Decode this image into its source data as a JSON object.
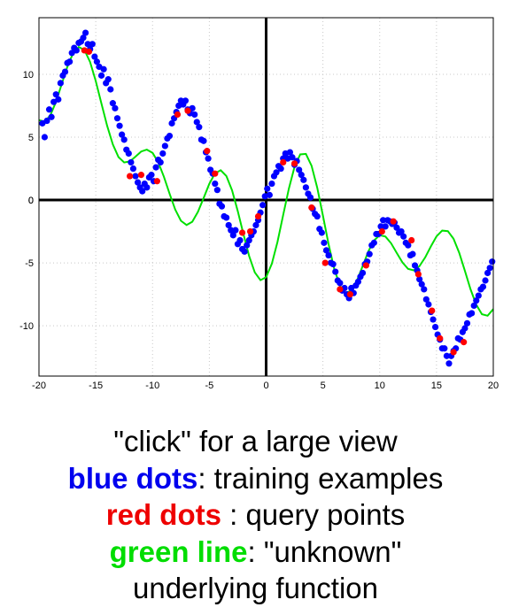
{
  "chart_data": {
    "type": "scatter",
    "title": "",
    "xlabel": "",
    "ylabel": "",
    "xlim": [
      -20,
      20
    ],
    "ylim": [
      -14,
      14.5
    ],
    "grid": true,
    "xticks": [
      -20,
      -15,
      -10,
      -5,
      0,
      5,
      10,
      15,
      20
    ],
    "yticks": [
      -10,
      -5,
      0,
      5,
      10
    ],
    "xtick_labels": [
      "-20",
      "-15",
      "-10",
      "-5",
      "0",
      "5",
      "10",
      "15",
      "20"
    ],
    "ytick_labels": [
      "-10",
      "-5",
      "0",
      "5",
      "10"
    ],
    "series": [
      {
        "role": "training examples",
        "color": "#0000ff",
        "points": [
          [
            -19.7,
            6.1
          ],
          [
            -19.5,
            5.0
          ],
          [
            -19.3,
            6.3
          ],
          [
            -19.1,
            7.2
          ],
          [
            -18.9,
            6.6
          ],
          [
            -18.7,
            7.8
          ],
          [
            -18.5,
            8.4
          ],
          [
            -18.3,
            8.0
          ],
          [
            -18.1,
            9.3
          ],
          [
            -17.9,
            9.9
          ],
          [
            -17.7,
            10.2
          ],
          [
            -17.5,
            10.9
          ],
          [
            -17.3,
            11.0
          ],
          [
            -17.1,
            11.7
          ],
          [
            -16.9,
            12.1
          ],
          [
            -16.7,
            11.9
          ],
          [
            -16.5,
            12.5
          ],
          [
            -16.3,
            12.6
          ],
          [
            -16.1,
            12.9
          ],
          [
            -15.9,
            13.3
          ],
          [
            -15.7,
            12.4
          ],
          [
            -15.5,
            12.0
          ],
          [
            -15.3,
            12.4
          ],
          [
            -15.1,
            11.4
          ],
          [
            -14.9,
            11.0
          ],
          [
            -14.7,
            10.6
          ],
          [
            -14.5,
            9.9
          ],
          [
            -14.3,
            10.4
          ],
          [
            -14.1,
            9.3
          ],
          [
            -13.9,
            9.6
          ],
          [
            -13.7,
            8.8
          ],
          [
            -13.5,
            7.7
          ],
          [
            -13.3,
            7.3
          ],
          [
            -13.1,
            6.5
          ],
          [
            -12.9,
            5.9
          ],
          [
            -12.7,
            5.2
          ],
          [
            -12.5,
            4.8
          ],
          [
            -12.3,
            4.0
          ],
          [
            -12.1,
            3.7
          ],
          [
            -11.9,
            3.0
          ],
          [
            -11.7,
            2.5
          ],
          [
            -11.5,
            1.9
          ],
          [
            -11.3,
            1.4
          ],
          [
            -11.1,
            1.0
          ],
          [
            -10.9,
            0.7
          ],
          [
            -10.7,
            1.3
          ],
          [
            -10.5,
            1.0
          ],
          [
            -10.3,
            1.8
          ],
          [
            -10.1,
            2.0
          ],
          [
            -9.9,
            1.5
          ],
          [
            -9.7,
            2.6
          ],
          [
            -9.5,
            3.2
          ],
          [
            -9.3,
            3.0
          ],
          [
            -9.1,
            3.7
          ],
          [
            -8.9,
            4.3
          ],
          [
            -8.7,
            4.9
          ],
          [
            -8.5,
            5.1
          ],
          [
            -8.3,
            6.1
          ],
          [
            -8.1,
            6.5
          ],
          [
            -7.9,
            7.0
          ],
          [
            -7.7,
            7.5
          ],
          [
            -7.5,
            7.9
          ],
          [
            -7.3,
            7.6
          ],
          [
            -7.1,
            7.9
          ],
          [
            -6.9,
            7.2
          ],
          [
            -6.7,
            6.9
          ],
          [
            -6.5,
            7.3
          ],
          [
            -6.3,
            6.8
          ],
          [
            -6.1,
            6.2
          ],
          [
            -5.9,
            5.8
          ],
          [
            -5.7,
            4.8
          ],
          [
            -5.5,
            4.7
          ],
          [
            -5.3,
            3.8
          ],
          [
            -5.1,
            3.3
          ],
          [
            -4.9,
            2.4
          ],
          [
            -4.7,
            2.1
          ],
          [
            -4.5,
            1.3
          ],
          [
            -4.3,
            0.8
          ],
          [
            -4.1,
            -0.3
          ],
          [
            -3.9,
            -0.5
          ],
          [
            -3.7,
            -1.3
          ],
          [
            -3.5,
            -1.4
          ],
          [
            -3.3,
            -2.0
          ],
          [
            -3.1,
            -2.4
          ],
          [
            -2.9,
            -2.8
          ],
          [
            -2.7,
            -2.4
          ],
          [
            -2.5,
            -3.5
          ],
          [
            -2.3,
            -3.2
          ],
          [
            -2.1,
            -3.9
          ],
          [
            -1.9,
            -4.1
          ],
          [
            -1.7,
            -3.6
          ],
          [
            -1.5,
            -3.2
          ],
          [
            -1.3,
            -2.8
          ],
          [
            -1.1,
            -2.5
          ],
          [
            -0.9,
            -2.0
          ],
          [
            -0.7,
            -1.6
          ],
          [
            -0.5,
            -1.0
          ],
          [
            -0.3,
            -0.4
          ],
          [
            -0.1,
            0.3
          ],
          [
            0.1,
            0.9
          ],
          [
            0.3,
            0.4
          ],
          [
            0.5,
            1.3
          ],
          [
            0.7,
            1.9
          ],
          [
            0.9,
            2.2
          ],
          [
            1.1,
            2.7
          ],
          [
            1.3,
            2.5
          ],
          [
            1.5,
            3.3
          ],
          [
            1.7,
            3.7
          ],
          [
            1.9,
            3.3
          ],
          [
            2.1,
            3.8
          ],
          [
            2.3,
            3.4
          ],
          [
            2.5,
            2.8
          ],
          [
            2.7,
            3.1
          ],
          [
            2.9,
            2.4
          ],
          [
            3.1,
            2.0
          ],
          [
            3.3,
            1.6
          ],
          [
            3.5,
            1.0
          ],
          [
            3.7,
            0.5
          ],
          [
            3.9,
            0.2
          ],
          [
            4.1,
            -0.7
          ],
          [
            4.3,
            -1.1
          ],
          [
            4.5,
            -1.3
          ],
          [
            4.7,
            -2.3
          ],
          [
            4.9,
            -2.6
          ],
          [
            5.1,
            -3.4
          ],
          [
            5.3,
            -4.0
          ],
          [
            5.5,
            -4.4
          ],
          [
            5.7,
            -5.0
          ],
          [
            5.9,
            -5.1
          ],
          [
            6.1,
            -5.7
          ],
          [
            6.3,
            -6.4
          ],
          [
            6.5,
            -6.6
          ],
          [
            6.7,
            -7.2
          ],
          [
            6.9,
            -7.0
          ],
          [
            7.1,
            -7.5
          ],
          [
            7.3,
            -7.8
          ],
          [
            7.5,
            -7.0
          ],
          [
            7.7,
            -7.4
          ],
          [
            7.9,
            -6.8
          ],
          [
            8.1,
            -6.5
          ],
          [
            8.3,
            -6.1
          ],
          [
            8.5,
            -5.8
          ],
          [
            8.7,
            -5.1
          ],
          [
            8.9,
            -4.9
          ],
          [
            9.1,
            -4.3
          ],
          [
            9.3,
            -3.6
          ],
          [
            9.5,
            -3.4
          ],
          [
            9.7,
            -2.7
          ],
          [
            9.9,
            -2.7
          ],
          [
            10.1,
            -2.1
          ],
          [
            10.3,
            -1.6
          ],
          [
            10.5,
            -2.1
          ],
          [
            10.7,
            -1.6
          ],
          [
            10.9,
            -1.7
          ],
          [
            11.1,
            -1.9
          ],
          [
            11.3,
            -1.8
          ],
          [
            11.5,
            -2.2
          ],
          [
            11.7,
            -2.6
          ],
          [
            11.9,
            -2.5
          ],
          [
            12.1,
            -2.9
          ],
          [
            12.3,
            -3.4
          ],
          [
            12.5,
            -3.6
          ],
          [
            12.7,
            -4.4
          ],
          [
            12.9,
            -4.3
          ],
          [
            13.1,
            -5.2
          ],
          [
            13.3,
            -5.6
          ],
          [
            13.5,
            -6.3
          ],
          [
            13.7,
            -6.7
          ],
          [
            13.9,
            -7.1
          ],
          [
            14.1,
            -7.9
          ],
          [
            14.3,
            -8.3
          ],
          [
            14.5,
            -8.9
          ],
          [
            14.7,
            -9.5
          ],
          [
            14.9,
            -10.1
          ],
          [
            15.1,
            -10.7
          ],
          [
            15.3,
            -11.1
          ],
          [
            15.5,
            -11.8
          ],
          [
            15.7,
            -11.8
          ],
          [
            15.9,
            -12.4
          ],
          [
            16.1,
            -13.0
          ],
          [
            16.3,
            -12.4
          ],
          [
            16.5,
            -12.0
          ],
          [
            16.7,
            -11.8
          ],
          [
            16.9,
            -11.0
          ],
          [
            17.1,
            -11.1
          ],
          [
            17.3,
            -10.5
          ],
          [
            17.5,
            -10.2
          ],
          [
            17.7,
            -9.8
          ],
          [
            17.9,
            -9.1
          ],
          [
            18.1,
            -9.0
          ],
          [
            18.3,
            -8.4
          ],
          [
            18.5,
            -8.0
          ],
          [
            18.7,
            -7.6
          ],
          [
            18.9,
            -7.1
          ],
          [
            19.1,
            -6.9
          ],
          [
            19.3,
            -6.4
          ],
          [
            19.5,
            -5.8
          ],
          [
            19.7,
            -5.4
          ],
          [
            19.9,
            -4.9
          ]
        ]
      },
      {
        "role": "query points",
        "color": "#ff0000",
        "points": [
          [
            -16.0,
            11.9
          ],
          [
            -15.6,
            11.8
          ],
          [
            -12.0,
            1.9
          ],
          [
            -11.0,
            2.0
          ],
          [
            -9.6,
            1.5
          ],
          [
            -7.8,
            6.8
          ],
          [
            -6.9,
            7.1
          ],
          [
            -5.2,
            3.9
          ],
          [
            -4.5,
            2.1
          ],
          [
            -2.1,
            -2.6
          ],
          [
            -1.4,
            -2.5
          ],
          [
            -0.7,
            -1.3
          ],
          [
            1.5,
            3.0
          ],
          [
            2.5,
            2.9
          ],
          [
            4.0,
            -0.6
          ],
          [
            5.2,
            -5.0
          ],
          [
            6.5,
            -7.1
          ],
          [
            7.4,
            -7.5
          ],
          [
            8.8,
            -5.2
          ],
          [
            10.2,
            -2.5
          ],
          [
            11.2,
            -1.7
          ],
          [
            12.8,
            -3.2
          ],
          [
            13.4,
            -5.9
          ],
          [
            14.6,
            -8.8
          ],
          [
            15.3,
            -11.0
          ],
          [
            16.5,
            -12.1
          ],
          [
            17.4,
            -11.3
          ]
        ]
      },
      {
        "role": "underlying function",
        "color": "#00e000",
        "points": [
          [
            -20,
            6.36
          ],
          [
            -19.5,
            6.23
          ],
          [
            -19,
            6.73
          ],
          [
            -18.5,
            7.81
          ],
          [
            -18,
            9.22
          ],
          [
            -17.5,
            10.61
          ],
          [
            -17,
            11.68
          ],
          [
            -16.5,
            12.17
          ],
          [
            -16,
            11.93
          ],
          [
            -15.5,
            10.98
          ],
          [
            -15,
            9.47
          ],
          [
            -14.5,
            7.68
          ],
          [
            -14,
            5.9
          ],
          [
            -13.5,
            4.42
          ],
          [
            -13,
            3.42
          ],
          [
            -12.5,
            2.99
          ],
          [
            -12,
            3.07
          ],
          [
            -11.5,
            3.45
          ],
          [
            -11,
            3.86
          ],
          [
            -10.5,
            4.01
          ],
          [
            -10,
            3.75
          ],
          [
            -9.5,
            3.0
          ],
          [
            -9,
            1.85
          ],
          [
            -8.5,
            0.5
          ],
          [
            -8,
            -0.76
          ],
          [
            -7.5,
            -1.65
          ],
          [
            -7,
            -1.99
          ],
          [
            -6.5,
            -1.73
          ],
          [
            -6,
            -0.94
          ],
          [
            -5.5,
            0.17
          ],
          [
            -5,
            1.3
          ],
          [
            -4.5,
            2.12
          ],
          [
            -4,
            2.37
          ],
          [
            -3.5,
            1.91
          ],
          [
            -3,
            0.78
          ],
          [
            -2.5,
            -0.86
          ],
          [
            -2,
            -2.71
          ],
          [
            -1.5,
            -4.45
          ],
          [
            -1,
            -5.75
          ],
          [
            -0.5,
            -6.37
          ],
          [
            0,
            -6.14
          ],
          [
            0.5,
            -5.08
          ],
          [
            1,
            -3.34
          ],
          [
            1.5,
            -1.21
          ],
          [
            2,
            0.91
          ],
          [
            2.5,
            2.64
          ],
          [
            3,
            3.63
          ],
          [
            3.5,
            3.67
          ],
          [
            4,
            2.73
          ],
          [
            4.5,
            0.98
          ],
          [
            5,
            -1.23
          ],
          [
            5.5,
            -3.51
          ],
          [
            6,
            -5.47
          ],
          [
            6.5,
            -6.82
          ],
          [
            7,
            -7.39
          ],
          [
            7.5,
            -7.2
          ],
          [
            8,
            -6.39
          ],
          [
            8.5,
            -5.25
          ],
          [
            9,
            -4.09
          ],
          [
            9.5,
            -3.21
          ],
          [
            10,
            -2.8
          ],
          [
            10.5,
            -2.9
          ],
          [
            11,
            -3.44
          ],
          [
            11.5,
            -4.21
          ],
          [
            12,
            -4.96
          ],
          [
            12.5,
            -5.48
          ],
          [
            13,
            -5.59
          ],
          [
            13.5,
            -5.26
          ],
          [
            14,
            -4.56
          ],
          [
            14.5,
            -3.69
          ],
          [
            15,
            -2.89
          ],
          [
            15.5,
            -2.43
          ],
          [
            16,
            -2.47
          ],
          [
            16.5,
            -3.08
          ],
          [
            17,
            -4.19
          ],
          [
            17.5,
            -5.62
          ],
          [
            18,
            -7.1
          ],
          [
            18.5,
            -8.33
          ],
          [
            19,
            -9.08
          ],
          [
            19.5,
            -9.2
          ],
          [
            20,
            -8.67
          ]
        ]
      }
    ],
    "colors": {
      "axis": "#000000",
      "grid": "#c8c8c8"
    }
  },
  "caption": {
    "line1": "\"click\" for a large view",
    "blue_term": "blue dots",
    "blue_rest": ": training examples",
    "red_term": "red dots",
    "red_rest": " : query points",
    "green_term": "green line",
    "green_rest": ": \"unknown\"",
    "line5": "underlying function",
    "colors": {
      "blue": "#0000ee",
      "red": "#ee0000",
      "green": "#00dd00"
    }
  }
}
